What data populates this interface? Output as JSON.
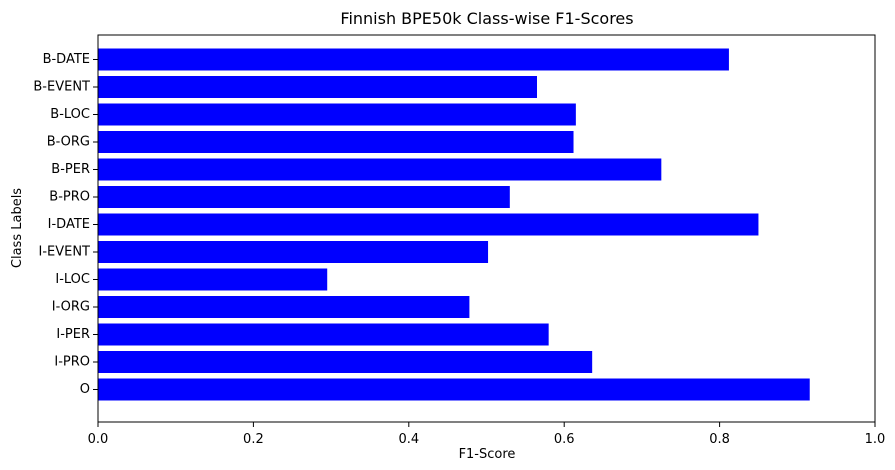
{
  "chart_data": {
    "type": "bar",
    "orientation": "horizontal",
    "title": "Finnish BPE50k Class-wise F1-Scores",
    "xlabel": "F1-Score",
    "ylabel": "Class Labels",
    "xlim": [
      0,
      1.0
    ],
    "xticks": [
      "0.0",
      "0.2",
      "0.4",
      "0.6",
      "0.8",
      "1.0"
    ],
    "grid": false,
    "bar_color": "#0000ff",
    "categories": [
      "B-DATE",
      "B-EVENT",
      "B-LOC",
      "B-ORG",
      "B-PER",
      "B-PRO",
      "I-DATE",
      "I-EVENT",
      "I-LOC",
      "I-ORG",
      "I-PER",
      "I-PRO",
      "O"
    ],
    "values": [
      0.812,
      0.565,
      0.615,
      0.612,
      0.725,
      0.53,
      0.85,
      0.502,
      0.295,
      0.478,
      0.58,
      0.636,
      0.916
    ]
  }
}
